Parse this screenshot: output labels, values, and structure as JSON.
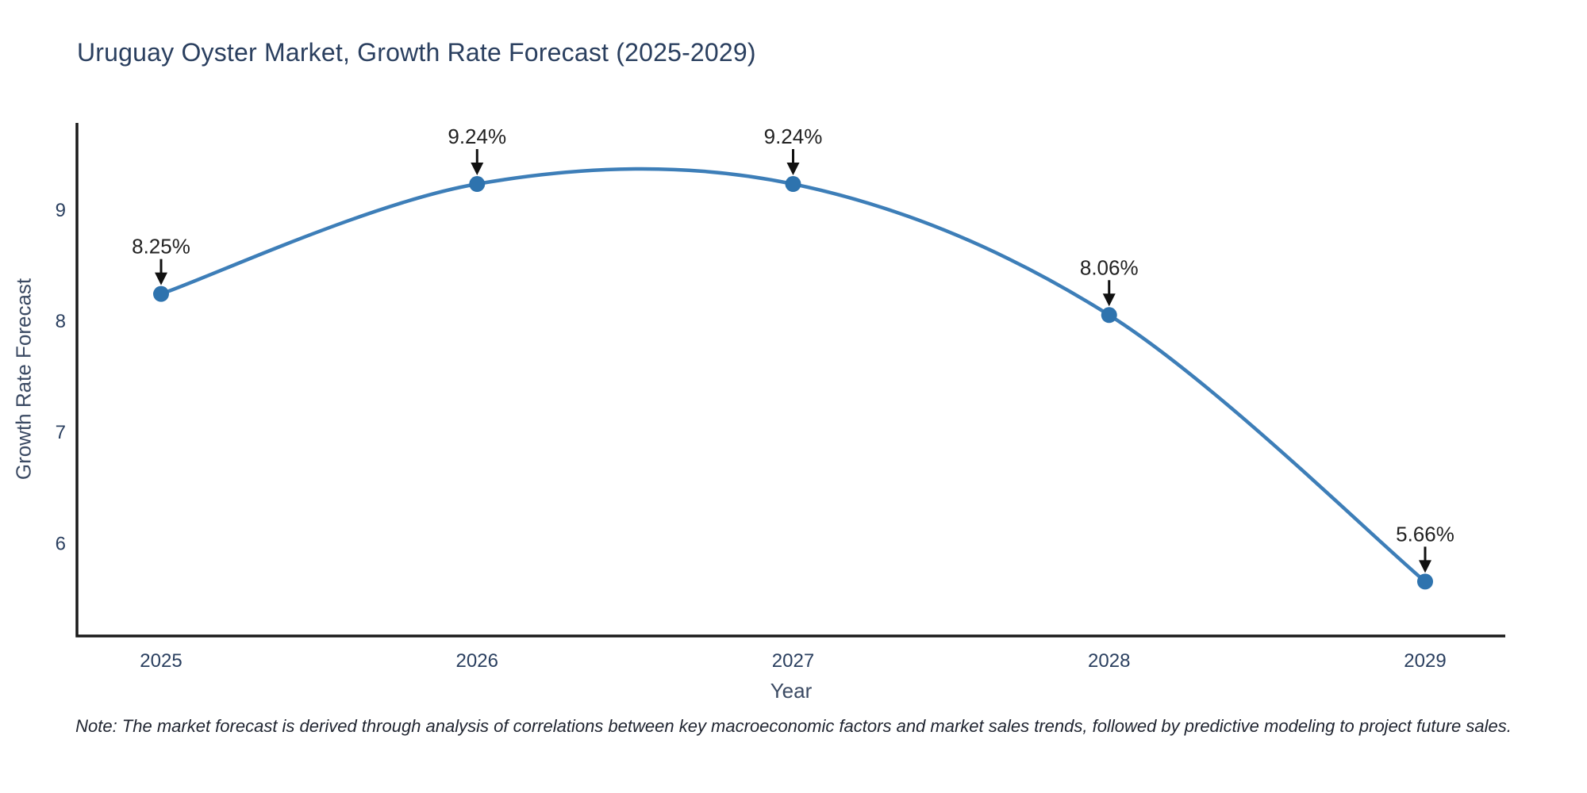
{
  "page": {
    "background_color": "#ffffff"
  },
  "chart_data": {
    "type": "line",
    "title": "Uruguay Oyster Market, Growth Rate Forecast (2025-2029)",
    "xlabel": "Year",
    "ylabel": "Growth Rate Forecast",
    "categories": [
      "2025",
      "2026",
      "2027",
      "2028",
      "2029"
    ],
    "series": [
      {
        "name": "Growth Rate Forecast",
        "values": [
          8.25,
          9.24,
          9.24,
          8.06,
          5.66
        ],
        "point_labels": [
          "8.25%",
          "9.24%",
          "9.24%",
          "8.06%",
          "5.66%"
        ]
      }
    ],
    "yticks": [
      6,
      7,
      8,
      9
    ],
    "ylim": [
      5.17,
      9.79
    ],
    "grid": false,
    "legend_position": "none",
    "line_shape": "spline",
    "colors": {
      "line": "#3d7eb8",
      "marker": "#2e73ae",
      "axis": "#1a1a1a",
      "tick_text": "#2a3f5f",
      "axis_title_text": "#3b4a63",
      "annotation_text": "#222222",
      "annotation_arrow": "#111111",
      "title_text": "#2a3f5f"
    }
  },
  "note": "Note: The market forecast is derived through analysis of correlations between key macroeconomic factors and market sales trends, followed by predictive modeling to project future sales."
}
